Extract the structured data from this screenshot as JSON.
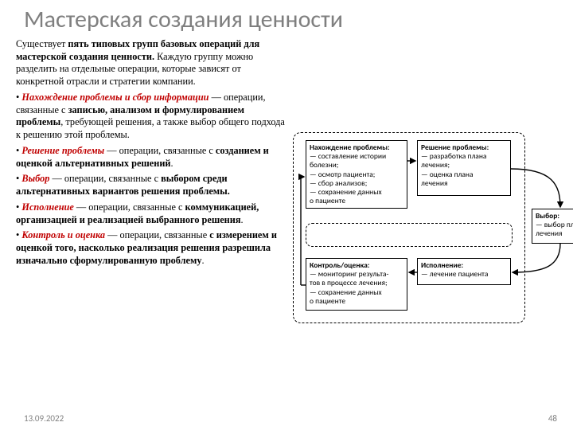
{
  "title": "Мастерская создания ценности",
  "intro_pre": "Существует ",
  "intro_bold": "пять типовых групп базовых операций для мастерской создания ценности.",
  "intro_post": " Каждую группу можно разделить на отдельные операции, которые зависят от конкретной отрасли и стратегии компании.",
  "b1_pre": "• ",
  "b1_name": "Нахождение проблемы и сбор информации",
  "b1_mid": " — операции, связанные с ",
  "b1_bold": "записью, анализом и формулированием проблемы",
  "b1_post": ", требующей решения, а также выбор общего подхода к решению этой проблемы.",
  "b2_pre": "• ",
  "b2_name": "Решение проблемы",
  "b2_mid": " — операции, связанные с ",
  "b2_bold": "созданием и оценкой альтернативных решений",
  "b2_post": ".",
  "b3_pre": "• ",
  "b3_name": "Выбор",
  "b3_mid": " — операции, связанные с ",
  "b3_bold": "выбором среди альтернативных вариантов решения проблемы.",
  "b4_pre": "• ",
  "b4_name": "Исполнение",
  "b4_mid": " — операции, связанные с ",
  "b4_bold": "коммуникацией, организацией и реализацией выбранного решения",
  "b4_post": ".",
  "b5_pre": "• ",
  "b5_name": "Контроль и оценка",
  "b5_mid": " — операции, связанные ",
  "b5_bold": "с измерением и оценкой того, насколько реализация решения разрешила изначально сформулированную проблему",
  "b5_post": ".",
  "footer_date": "13.09.2022",
  "footer_page": "48",
  "diagram": {
    "nodes": {
      "problem": {
        "title": "Нахождение проблемы:",
        "lines": [
          "— составление истории",
          "   болезни;",
          "— осмотр пациента;",
          "— сбор анализов;",
          "— сохранение данных",
          "   о пациенте"
        ]
      },
      "solution": {
        "title": "Решение проблемы:",
        "lines": [
          "— разработка плана",
          "   лечения;",
          "— оценка плана",
          "   лечения"
        ]
      },
      "choice": {
        "title": "Выбор:",
        "lines": [
          "— выбор плана",
          "   лечения"
        ]
      },
      "control": {
        "title": "Контроль/оценка:",
        "lines": [
          "— мониторинг результа-",
          "   тов в процессе лечения;",
          "— сохранение данных",
          "   о пациенте"
        ]
      },
      "exec": {
        "title": "Исполнение:",
        "lines": [
          "— лечение пациента"
        ]
      }
    },
    "style": {
      "node_border": "#000000",
      "node_bg": "#ffffff",
      "dashed_border": "#000000",
      "title_fontsize": 9.5,
      "line_fontsize": 9.5
    }
  },
  "colors": {
    "title_gray": "#7f7f7f",
    "accent_red": "#c00000",
    "text": "#000000",
    "footer_gray": "#808080",
    "background": "#ffffff"
  }
}
